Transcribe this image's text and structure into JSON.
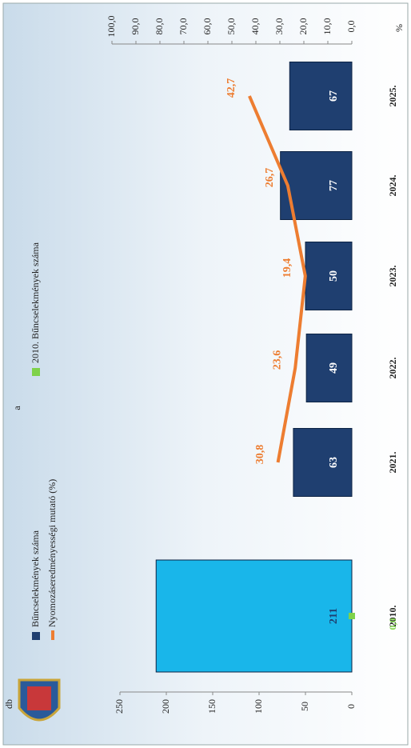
{
  "chart_data": {
    "type": "bar",
    "title": "a",
    "categories": [
      "2010.",
      "2021.",
      "2022.",
      "2023.",
      "2024.",
      "2025."
    ],
    "ylabel": "db",
    "ylim": [
      0,
      250
    ],
    "yticks": [
      0,
      50,
      100,
      150,
      200,
      250
    ],
    "y2label": "%",
    "y2lim": [
      0,
      100
    ],
    "y2ticks": [
      {
        "value": 0,
        "label": "0,0"
      },
      {
        "value": 10,
        "label": "10,0"
      },
      {
        "value": 20,
        "label": "20,0"
      },
      {
        "value": 30,
        "label": "30,0"
      },
      {
        "value": 40,
        "label": "40,0"
      },
      {
        "value": 50,
        "label": "50,0"
      },
      {
        "value": 60,
        "label": "60,0"
      },
      {
        "value": 70,
        "label": "70,0"
      },
      {
        "value": 80,
        "label": "80,0"
      },
      {
        "value": 90,
        "label": "90,0"
      },
      {
        "value": 100,
        "label": "100,0"
      }
    ],
    "series": [
      {
        "name": "Bűncselekmények száma",
        "type": "bar",
        "color": "#1f3f70",
        "colors": [
          "#19b6ea",
          "#1f3f70",
          "#1f3f70",
          "#1f3f70",
          "#1f3f70",
          "#1f3f70"
        ],
        "values": [
          211,
          63,
          49,
          50,
          77,
          67
        ]
      },
      {
        "name": "Nyomozáseredményességi mutató (%)",
        "type": "line",
        "axis": "y2",
        "color": "#ed7d31",
        "values": [
          null,
          30.8,
          23.6,
          19.4,
          26.7,
          42.7
        ],
        "value_labels": [
          null,
          "30,8",
          "23,6",
          "19,4",
          "26,7",
          "42,7"
        ]
      },
      {
        "name": "2010. Bűncselekmények száma",
        "type": "marker",
        "axis": "y2",
        "color": "#7fd24a",
        "values": [
          0,
          null,
          null,
          null,
          null,
          null
        ],
        "value_labels": [
          "0,0",
          null,
          null,
          null,
          null,
          null
        ]
      }
    ]
  }
}
